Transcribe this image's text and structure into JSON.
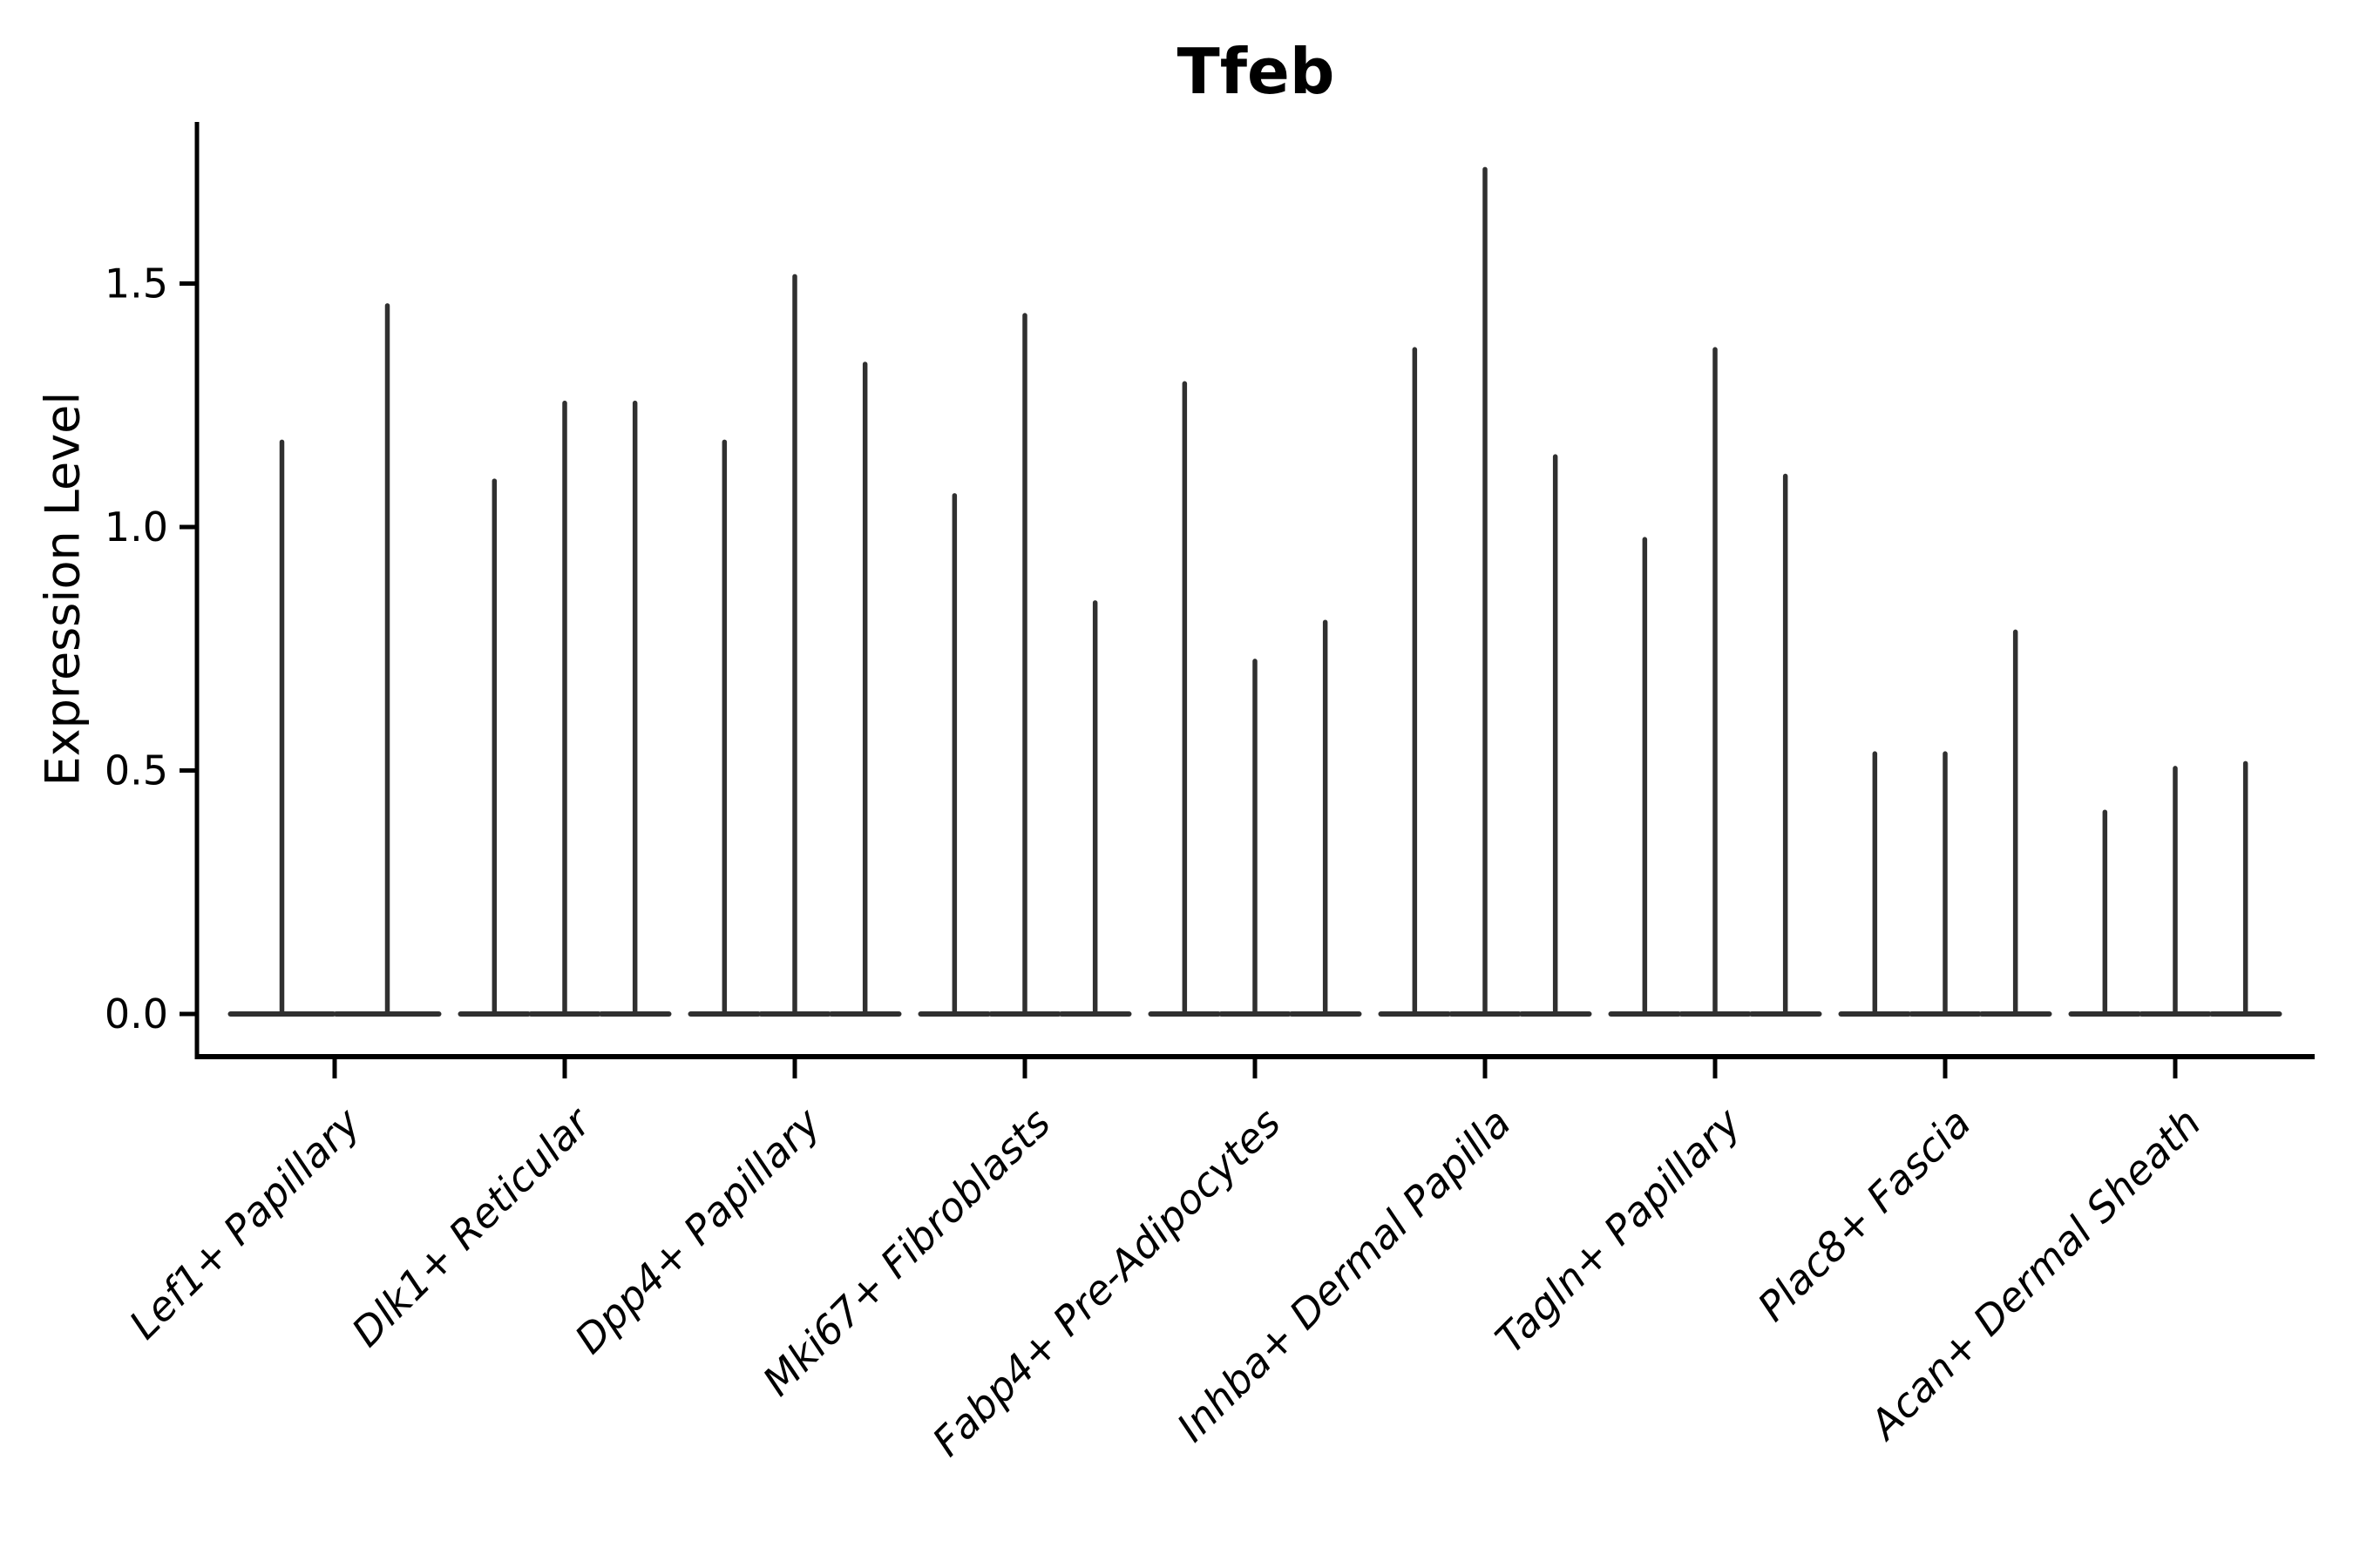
{
  "chart_data": {
    "type": "violin",
    "title": "Tfeb",
    "ylabel": "Expression Level",
    "xlabel": "",
    "ytick_labels": [
      "0.0",
      "0.5",
      "1.0",
      "1.5"
    ],
    "ytick_values": [
      0.0,
      0.5,
      1.0,
      1.5
    ],
    "ylim": [
      -0.09,
      1.83
    ],
    "grid": "off",
    "legend": "none",
    "violin_style": "thin-spike-with-flat-base-at-zero",
    "groups": [
      {
        "label": "Lef1+ Papillary",
        "violin_maxima": [
          1.18,
          1.46
        ]
      },
      {
        "label": "Dlk1+ Reticular",
        "violin_maxima": [
          1.1,
          1.26,
          1.26
        ]
      },
      {
        "label": "Dpp4+ Papillary",
        "violin_maxima": [
          1.18,
          1.52,
          1.34
        ]
      },
      {
        "label": "Mki67+ Fibroblasts",
        "violin_maxima": [
          1.07,
          1.44,
          0.85
        ]
      },
      {
        "label": "Fabp4+ Pre-Adipocytes",
        "violin_maxima": [
          1.3,
          0.73,
          0.81
        ]
      },
      {
        "label": "Inhba+ Dermal Papilla",
        "violin_maxima": [
          1.37,
          1.74,
          1.15
        ]
      },
      {
        "label": "Tagln+ Papillary",
        "violin_maxima": [
          0.98,
          1.37,
          1.11
        ]
      },
      {
        "label": "Plac8+ Fascia",
        "violin_maxima": [
          0.54,
          0.54,
          0.79
        ]
      },
      {
        "label": "Acan+ Dermal Sheath",
        "violin_maxima": [
          0.42,
          0.51,
          0.52
        ]
      }
    ],
    "colors": {
      "violin": "#303030",
      "axis": "#000000",
      "text": "#000000",
      "background": "#ffffff"
    }
  }
}
